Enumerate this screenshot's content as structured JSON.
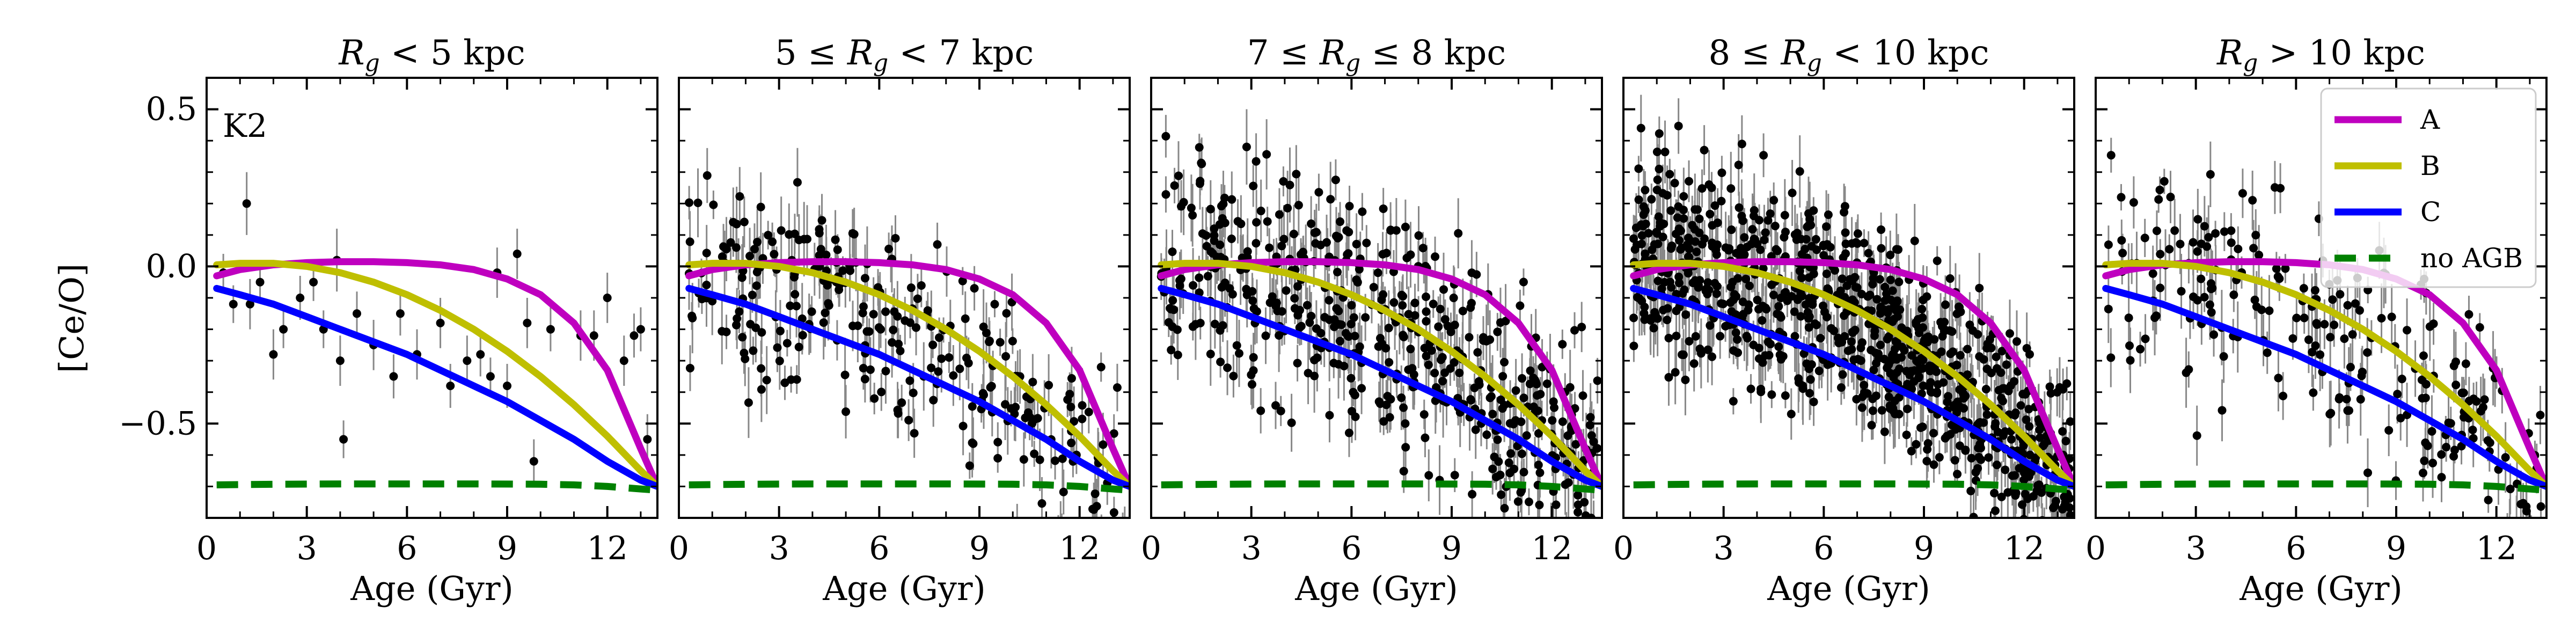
{
  "chart_data": {
    "type": "line",
    "figure_label": "K2",
    "xlabel": "Age (Gyr)",
    "ylabel": "[Ce/O]",
    "xlim": [
      0,
      13.5
    ],
    "ylim": [
      -0.8,
      0.6
    ],
    "xticks": [
      0,
      3,
      6,
      9,
      12
    ],
    "xtick_labels": [
      "0",
      "3",
      "6",
      "9",
      "12"
    ],
    "yticks": [
      0.5,
      0.0,
      -0.5
    ],
    "ytick_labels": [
      "0.5",
      "0.0",
      "−0.5"
    ],
    "grid": false,
    "legend": {
      "placement": "top-right of last panel",
      "entries": [
        {
          "label": "A",
          "color": "#bf00bf",
          "style": "solid"
        },
        {
          "label": "B",
          "color": "#bfbf00",
          "style": "solid"
        },
        {
          "label": "C",
          "color": "#0000ff",
          "style": "solid"
        },
        {
          "label": "no AGB",
          "color": "#008000",
          "style": "dashed"
        }
      ]
    },
    "series": [
      {
        "name": "A",
        "x": [
          0.3,
          1,
          2,
          3,
          4,
          5,
          6,
          7,
          8,
          9,
          10,
          11,
          12,
          13,
          13.5
        ],
        "values": [
          -0.03,
          -0.01,
          0.005,
          0.012,
          0.015,
          0.015,
          0.012,
          0.005,
          -0.01,
          -0.04,
          -0.09,
          -0.18,
          -0.33,
          -0.58,
          -0.7
        ]
      },
      {
        "name": "B",
        "x": [
          0.3,
          1,
          2,
          3,
          4,
          5,
          6,
          7,
          8,
          9,
          10,
          11,
          12,
          13,
          13.5
        ],
        "values": [
          0.005,
          0.01,
          0.01,
          0.0,
          -0.02,
          -0.05,
          -0.09,
          -0.14,
          -0.2,
          -0.27,
          -0.35,
          -0.44,
          -0.54,
          -0.65,
          -0.7
        ]
      },
      {
        "name": "C",
        "x": [
          0.3,
          1,
          2,
          3,
          4,
          5,
          6,
          7,
          8,
          9,
          10,
          11,
          12,
          13,
          13.5
        ],
        "values": [
          -0.07,
          -0.09,
          -0.12,
          -0.16,
          -0.2,
          -0.24,
          -0.28,
          -0.33,
          -0.38,
          -0.43,
          -0.49,
          -0.55,
          -0.62,
          -0.68,
          -0.7
        ]
      },
      {
        "name": "no AGB",
        "x": [
          0.3,
          2,
          4,
          6,
          8,
          10,
          11,
          12,
          13,
          13.5
        ],
        "values": [
          -0.695,
          -0.693,
          -0.692,
          -0.692,
          -0.692,
          -0.693,
          -0.695,
          -0.7,
          -0.708,
          -0.712
        ]
      }
    ],
    "panels": [
      {
        "title": "R_g < 5 kpc",
        "title_parts": [
          {
            "t": "R",
            "i": true
          },
          {
            "t": "g",
            "sub": true,
            "i": true
          },
          {
            "t": " < 5 kpc"
          }
        ],
        "points": [
          {
            "x": 0.5,
            "y": -0.02,
            "e": 0.06
          },
          {
            "x": 0.8,
            "y": -0.12,
            "e": 0.06
          },
          {
            "x": 1.2,
            "y": 0.2,
            "e": 0.1
          },
          {
            "x": 1.3,
            "y": -0.12,
            "e": 0.08
          },
          {
            "x": 1.6,
            "y": -0.05,
            "e": 0.06
          },
          {
            "x": 2.0,
            "y": -0.28,
            "e": 0.08
          },
          {
            "x": 2.3,
            "y": -0.2,
            "e": 0.06
          },
          {
            "x": 2.8,
            "y": -0.1,
            "e": 0.07
          },
          {
            "x": 3.2,
            "y": -0.05,
            "e": 0.06
          },
          {
            "x": 3.5,
            "y": -0.2,
            "e": 0.06
          },
          {
            "x": 3.9,
            "y": 0.02,
            "e": 0.1
          },
          {
            "x": 4.0,
            "y": -0.3,
            "e": 0.08
          },
          {
            "x": 4.1,
            "y": -0.55,
            "e": 0.06
          },
          {
            "x": 4.5,
            "y": -0.15,
            "e": 0.07
          },
          {
            "x": 5.0,
            "y": -0.25,
            "e": 0.08
          },
          {
            "x": 5.6,
            "y": -0.35,
            "e": 0.07
          },
          {
            "x": 5.8,
            "y": -0.15,
            "e": 0.07
          },
          {
            "x": 6.3,
            "y": -0.28,
            "e": 0.08
          },
          {
            "x": 7.0,
            "y": -0.18,
            "e": 0.08
          },
          {
            "x": 7.3,
            "y": -0.38,
            "e": 0.07
          },
          {
            "x": 7.8,
            "y": -0.3,
            "e": 0.08
          },
          {
            "x": 8.2,
            "y": -0.28,
            "e": 0.07
          },
          {
            "x": 8.5,
            "y": -0.35,
            "e": 0.06
          },
          {
            "x": 8.7,
            "y": -0.02,
            "e": 0.08
          },
          {
            "x": 9.3,
            "y": 0.04,
            "e": 0.08
          },
          {
            "x": 9.0,
            "y": -0.38,
            "e": 0.07
          },
          {
            "x": 9.6,
            "y": -0.18,
            "e": 0.08
          },
          {
            "x": 9.8,
            "y": -0.62,
            "e": 0.07
          },
          {
            "x": 10.3,
            "y": -0.2,
            "e": 0.07
          },
          {
            "x": 11.2,
            "y": -0.22,
            "e": 0.08
          },
          {
            "x": 11.6,
            "y": -0.22,
            "e": 0.08
          },
          {
            "x": 12.0,
            "y": -0.1,
            "e": 0.08
          },
          {
            "x": 12.5,
            "y": -0.3,
            "e": 0.08
          },
          {
            "x": 12.8,
            "y": -0.22,
            "e": 0.07
          },
          {
            "x": 13.0,
            "y": -0.2,
            "e": 0.07
          },
          {
            "x": 13.2,
            "y": -0.55,
            "e": 0.08
          }
        ]
      },
      {
        "title": "5 ≤ R_g < 7 kpc",
        "title_parts": [
          {
            "t": "5 ≤ "
          },
          {
            "t": "R",
            "i": true
          },
          {
            "t": "g",
            "sub": true,
            "i": true
          },
          {
            "t": " < 7 kpc"
          }
        ],
        "scatter": {
          "n": 280,
          "offset": -0.07,
          "spread": 0.16,
          "x_min": 0.3,
          "x_max": 13.4,
          "seed": 2
        }
      },
      {
        "title": "7 ≤ R_g ≤ 8 kpc",
        "title_parts": [
          {
            "t": "7 ≤ "
          },
          {
            "t": "R",
            "i": true
          },
          {
            "t": "g",
            "sub": true,
            "i": true
          },
          {
            "t": " ≤ 8 kpc"
          }
        ],
        "scatter": {
          "n": 520,
          "offset": -0.05,
          "spread": 0.18,
          "x_min": 0.3,
          "x_max": 13.4,
          "seed": 3
        }
      },
      {
        "title": "8 ≤ R_g < 10 kpc",
        "title_parts": [
          {
            "t": "8 ≤ "
          },
          {
            "t": "R",
            "i": true
          },
          {
            "t": "g",
            "sub": true,
            "i": true
          },
          {
            "t": " < 10 kpc"
          }
        ],
        "scatter": {
          "n": 900,
          "offset": -0.02,
          "spread": 0.16,
          "x_min": 0.3,
          "x_max": 13.4,
          "seed": 4
        }
      },
      {
        "title": "R_g > 10 kpc",
        "title_parts": [
          {
            "t": "R",
            "i": true
          },
          {
            "t": "g",
            "sub": true,
            "i": true
          },
          {
            "t": " > 10 kpc"
          }
        ],
        "scatter": {
          "n": 230,
          "offset": -0.05,
          "spread": 0.17,
          "x_min": 0.3,
          "x_max": 13.4,
          "seed": 5
        }
      }
    ]
  }
}
